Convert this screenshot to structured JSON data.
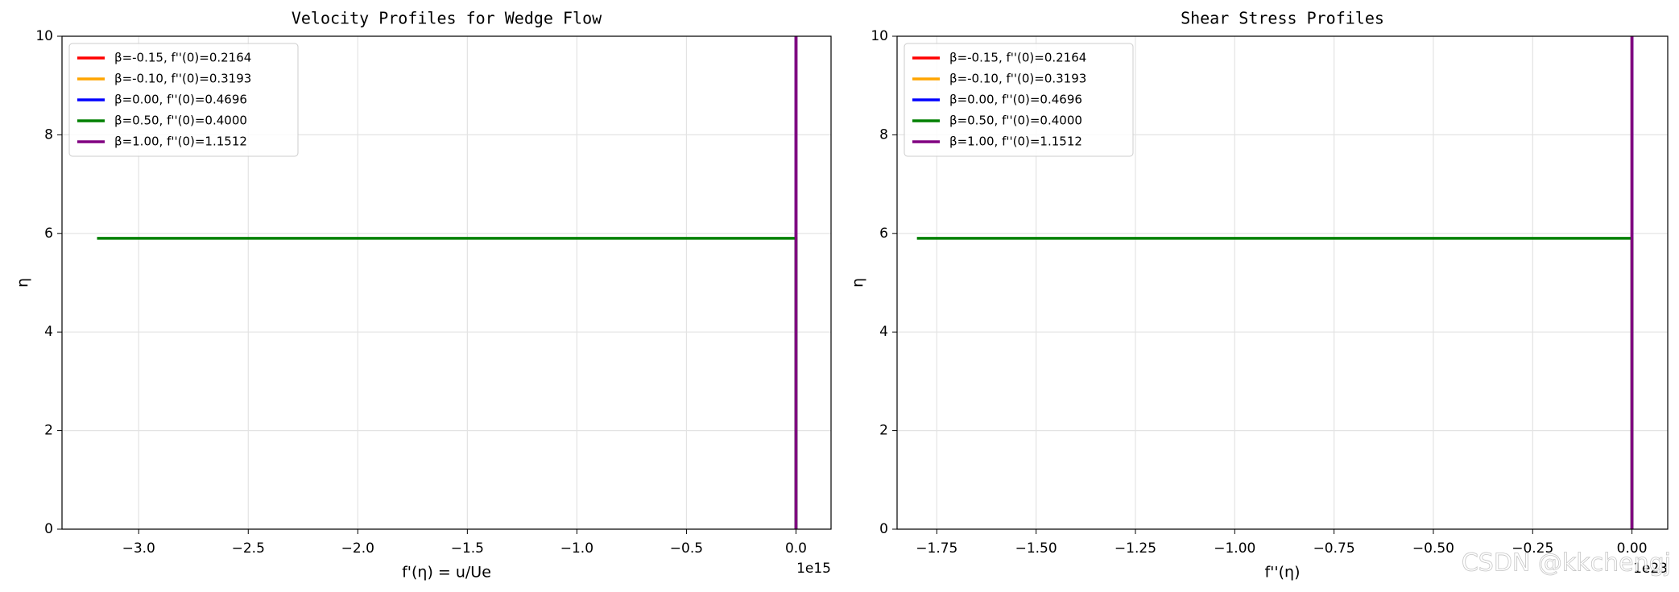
{
  "chart_data": [
    {
      "type": "line",
      "title": "Velocity Profiles for Wedge Flow",
      "x_label": "f'(η) = u/Ue",
      "y_label": "η",
      "x_offset_label": "1e15",
      "xlim": [
        -3.35,
        0.16
      ],
      "ylim": [
        0,
        10
      ],
      "xticks": [
        {
          "value": -3.0,
          "label": "−3.0"
        },
        {
          "value": -2.5,
          "label": "−2.5"
        },
        {
          "value": -2.0,
          "label": "−2.0"
        },
        {
          "value": -1.5,
          "label": "−1.5"
        },
        {
          "value": -1.0,
          "label": "−1.0"
        },
        {
          "value": -0.5,
          "label": "−0.5"
        },
        {
          "value": 0,
          "label": "0.0"
        }
      ],
      "yticks": [
        0,
        2,
        4,
        6,
        8,
        10
      ],
      "grid": true,
      "legend": "upper left",
      "series": [
        {
          "name": "β=-0.15, f''(0)=0.2164",
          "color": "#ff0000",
          "x": [
            0,
            0
          ],
          "y": [
            0,
            10
          ]
        },
        {
          "name": "β=-0.10, f''(0)=0.3193",
          "color": "#ffa500",
          "x": [
            0,
            0
          ],
          "y": [
            0,
            10
          ]
        },
        {
          "name": "β=0.00, f''(0)=0.4696",
          "color": "#0000ff",
          "x": [
            0,
            0
          ],
          "y": [
            0,
            10
          ]
        },
        {
          "name": "β=0.50, f''(0)=0.4000",
          "color": "#008000",
          "x": [
            0,
            0,
            -3.19
          ],
          "y": [
            0,
            5.9,
            5.9
          ]
        },
        {
          "name": "β=1.00, f''(0)=1.1512",
          "color": "#800080",
          "x": [
            0,
            0
          ],
          "y": [
            0,
            10
          ]
        }
      ]
    },
    {
      "type": "line",
      "title": "Shear Stress Profiles",
      "x_label": "f''(η)",
      "y_label": "η",
      "x_offset_label": "1e23",
      "xlim": [
        -1.85,
        0.09
      ],
      "ylim": [
        0,
        10
      ],
      "xticks": [
        {
          "value": -1.75,
          "label": "−1.75"
        },
        {
          "value": -1.5,
          "label": "−1.50"
        },
        {
          "value": -1.25,
          "label": "−1.25"
        },
        {
          "value": -1.0,
          "label": "−1.00"
        },
        {
          "value": -0.75,
          "label": "−0.75"
        },
        {
          "value": -0.5,
          "label": "−0.50"
        },
        {
          "value": -0.25,
          "label": "−0.25"
        },
        {
          "value": 0,
          "label": "0.00"
        }
      ],
      "yticks": [
        0,
        2,
        4,
        6,
        8,
        10
      ],
      "grid": true,
      "legend": "upper left",
      "series": [
        {
          "name": "β=-0.15, f''(0)=0.2164",
          "color": "#ff0000",
          "x": [
            0,
            0
          ],
          "y": [
            0,
            10
          ]
        },
        {
          "name": "β=-0.10, f''(0)=0.3193",
          "color": "#ffa500",
          "x": [
            0,
            0
          ],
          "y": [
            0,
            10
          ]
        },
        {
          "name": "β=0.00, f''(0)=0.4696",
          "color": "#0000ff",
          "x": [
            0,
            0
          ],
          "y": [
            0,
            10
          ]
        },
        {
          "name": "β=0.50, f''(0)=0.4000",
          "color": "#008000",
          "x": [
            0,
            0,
            -1.8
          ],
          "y": [
            0,
            5.9,
            5.9
          ]
        },
        {
          "name": "β=1.00, f''(0)=1.1512",
          "color": "#800080",
          "x": [
            0,
            0
          ],
          "y": [
            0,
            10
          ]
        }
      ]
    }
  ],
  "watermark": "CSDN @kkchengj"
}
